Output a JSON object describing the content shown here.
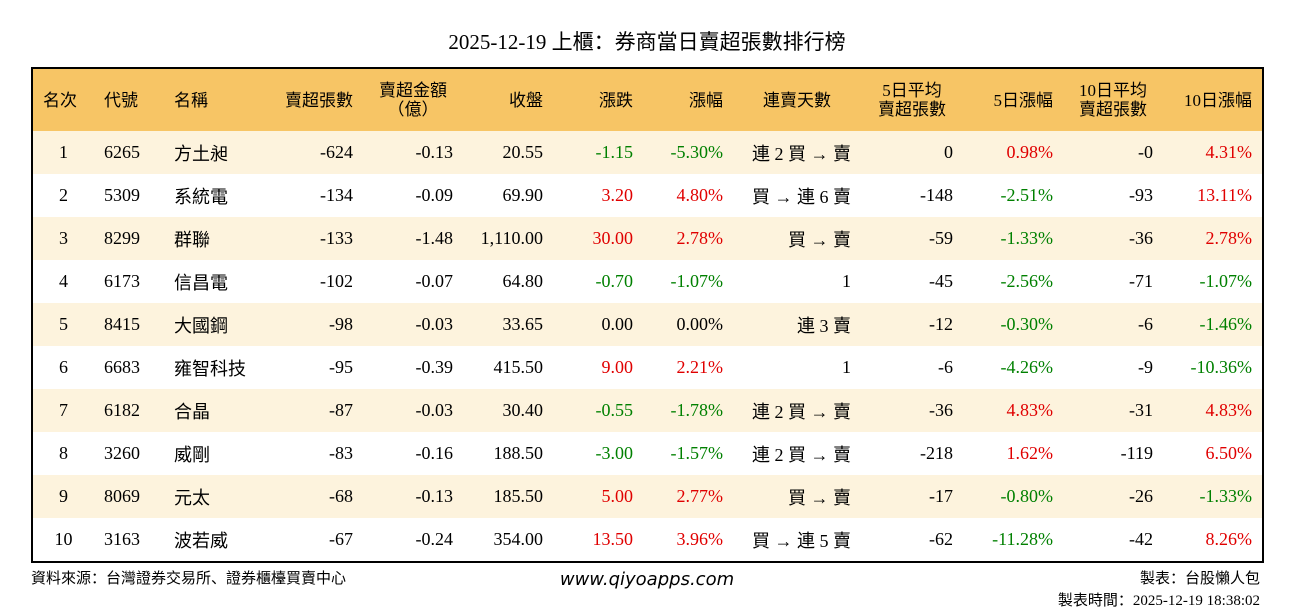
{
  "header": {
    "title": "2025-12-19 上櫃：券商當日賣超張數排行榜"
  },
  "table": {
    "columns": [
      "名次",
      "代號",
      "名稱",
      "賣超張數",
      "賣超金額\n（億）",
      "收盤",
      "漲跌",
      "漲幅",
      "連賣天數",
      "5日平均\n賣超張數",
      "5日漲幅",
      "10日平均\n賣超張數",
      "10日漲幅"
    ],
    "rows": [
      [
        "1",
        "6265",
        "方土昶",
        "-624",
        "-0.13",
        "20.55",
        "-1.15",
        "-5.30%",
        "連 2 買 → 賣",
        "0",
        "0.98%",
        "-0",
        "4.31%"
      ],
      [
        "2",
        "5309",
        "系統電",
        "-134",
        "-0.09",
        "69.90",
        "3.20",
        "4.80%",
        "買 → 連 6 賣",
        "-148",
        "-2.51%",
        "-93",
        "13.11%"
      ],
      [
        "3",
        "8299",
        "群聯",
        "-133",
        "-1.48",
        "1,110.00",
        "30.00",
        "2.78%",
        "買 → 賣",
        "-59",
        "-1.33%",
        "-36",
        "2.78%"
      ],
      [
        "4",
        "6173",
        "信昌電",
        "-102",
        "-0.07",
        "64.80",
        "-0.70",
        "-1.07%",
        "1",
        "-45",
        "-2.56%",
        "-71",
        "-1.07%"
      ],
      [
        "5",
        "8415",
        "大國鋼",
        "-98",
        "-0.03",
        "33.65",
        "0.00",
        "0.00%",
        "連 3 賣",
        "-12",
        "-0.30%",
        "-6",
        "-1.46%"
      ],
      [
        "6",
        "6683",
        "雍智科技",
        "-95",
        "-0.39",
        "415.50",
        "9.00",
        "2.21%",
        "1",
        "-6",
        "-4.26%",
        "-9",
        "-10.36%"
      ],
      [
        "7",
        "6182",
        "合晶",
        "-87",
        "-0.03",
        "30.40",
        "-0.55",
        "-1.78%",
        "連 2 買 → 賣",
        "-36",
        "4.83%",
        "-31",
        "4.83%"
      ],
      [
        "8",
        "3260",
        "威剛",
        "-83",
        "-0.16",
        "188.50",
        "-3.00",
        "-1.57%",
        "連 2 買 → 賣",
        "-218",
        "1.62%",
        "-119",
        "6.50%"
      ],
      [
        "9",
        "8069",
        "元太",
        "-68",
        "-0.13",
        "185.50",
        "5.00",
        "2.77%",
        "買 → 賣",
        "-17",
        "-0.80%",
        "-26",
        "-1.33%"
      ],
      [
        "10",
        "3163",
        "波若威",
        "-67",
        "-0.24",
        "354.00",
        "13.50",
        "3.96%",
        "買 → 連 5 賣",
        "-62",
        "-11.28%",
        "-42",
        "8.26%"
      ]
    ]
  },
  "footer": {
    "source": "資料來源：台灣證券交易所、證券櫃檯買賣中心",
    "site": "www.qiyoapps.com",
    "author": "製表：台股懶人包",
    "time": "製表時間：2025-12-19 18:38:02"
  }
}
